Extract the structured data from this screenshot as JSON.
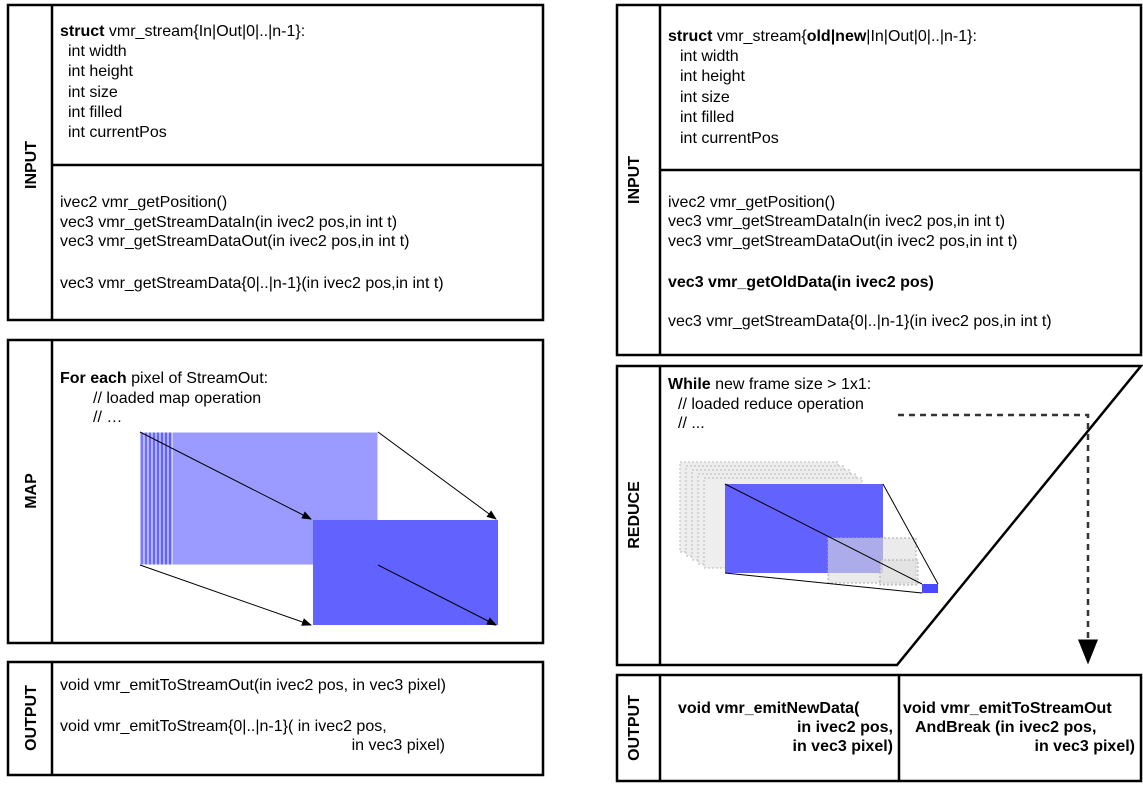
{
  "left": {
    "input": {
      "label": "INPUT",
      "struct_lines": [
        [
          {
            "text": "struct",
            "bold": true
          },
          {
            "text": " vmr_stream{In|Out|0|..|n-1}:",
            "bold": false
          }
        ],
        [
          {
            "text": "int width",
            "bold": false
          }
        ],
        [
          {
            "text": "int height",
            "bold": false
          }
        ],
        [
          {
            "text": "int size",
            "bold": false
          }
        ],
        [
          {
            "text": "int filled",
            "bold": false
          }
        ],
        [
          {
            "text": "int currentPos",
            "bold": false
          }
        ]
      ],
      "function_lines": [
        [
          {
            "text": "ivec2 vmr_getPosition()",
            "bold": false
          }
        ],
        [
          {
            "text": "vec3 vmr_getStreamDataIn(in ivec2 pos,in int t)",
            "bold": false
          }
        ],
        [
          {
            "text": "vec3 vmr_getStreamDataOut(in ivec2 pos,in int t)",
            "bold": false
          }
        ],
        [
          {
            "text": "vec3 vmr_getStreamData{0|..|n-1}(in ivec2 pos,in int t)",
            "bold": false
          }
        ]
      ]
    },
    "map": {
      "label": "MAP",
      "lines": [
        [
          {
            "text": "For each",
            "bold": true
          },
          {
            "text": " pixel of StreamOut:",
            "bold": false
          }
        ],
        [
          {
            "text": "// loaded map operation",
            "bold": false
          }
        ],
        [
          {
            "text": "// …",
            "bold": false
          }
        ]
      ]
    },
    "output": {
      "label": "OUTPUT",
      "lines": [
        [
          {
            "text": "void vmr_emitToStreamOut(in ivec2 pos, in vec3 pixel)",
            "bold": false
          }
        ],
        [
          {
            "text": "void vmr_emitToStream{0|..|n-1}( in ivec2 pos,",
            "bold": false
          }
        ],
        [
          {
            "text": "in vec3 pixel)",
            "bold": false
          }
        ]
      ]
    }
  },
  "right": {
    "input": {
      "label": "INPUT",
      "struct_lines": [
        [
          {
            "text": "struct",
            "bold": true
          },
          {
            "text": " vmr_stream{",
            "bold": false
          },
          {
            "text": "old|new",
            "bold": true
          },
          {
            "text": "|In|Out|0|..|n-1}:",
            "bold": false
          }
        ],
        [
          {
            "text": "int width",
            "bold": false
          }
        ],
        [
          {
            "text": "int height",
            "bold": false
          }
        ],
        [
          {
            "text": "int size",
            "bold": false
          }
        ],
        [
          {
            "text": "int filled",
            "bold": false
          }
        ],
        [
          {
            "text": "int currentPos",
            "bold": false
          }
        ]
      ],
      "function_lines": [
        [
          {
            "text": "ivec2 vmr_getPosition()",
            "bold": false
          }
        ],
        [
          {
            "text": "vec3 vmr_getStreamDataIn(in ivec2 pos,in int t)",
            "bold": false
          }
        ],
        [
          {
            "text": "vec3 vmr_getStreamDataOut(in ivec2 pos,in int t)",
            "bold": false
          }
        ],
        [
          {
            "text": "vec3 vmr_getOldData(in ivec2 pos)",
            "bold": true
          }
        ],
        [
          {
            "text": "vec3 vmr_getStreamData{0|..|n-1}(in ivec2 pos,in int t)",
            "bold": false
          }
        ]
      ]
    },
    "reduce": {
      "label": "REDUCE",
      "lines": [
        [
          {
            "text": "While",
            "bold": true
          },
          {
            "text": " new frame size > 1x1:",
            "bold": false
          }
        ],
        [
          {
            "text": "// loaded reduce operation",
            "bold": false
          }
        ],
        [
          {
            "text": "// ...",
            "bold": false
          }
        ]
      ]
    },
    "output": {
      "label": "OUTPUT",
      "new_data_lines": [
        [
          {
            "text": "void vmr_emitNewData(",
            "bold": true
          }
        ],
        [
          {
            "text": "in ivec2 pos,",
            "bold": true
          }
        ],
        [
          {
            "text": "in vec3 pixel)",
            "bold": true
          }
        ]
      ],
      "stream_out_lines": [
        [
          {
            "text": "void vmr_emitToStreamOut",
            "bold": true
          }
        ],
        [
          {
            "text": "AndBreak (in ivec2 pos,",
            "bold": true
          }
        ],
        [
          {
            "text": "in vec3 pixel)",
            "bold": true
          }
        ]
      ]
    }
  }
}
